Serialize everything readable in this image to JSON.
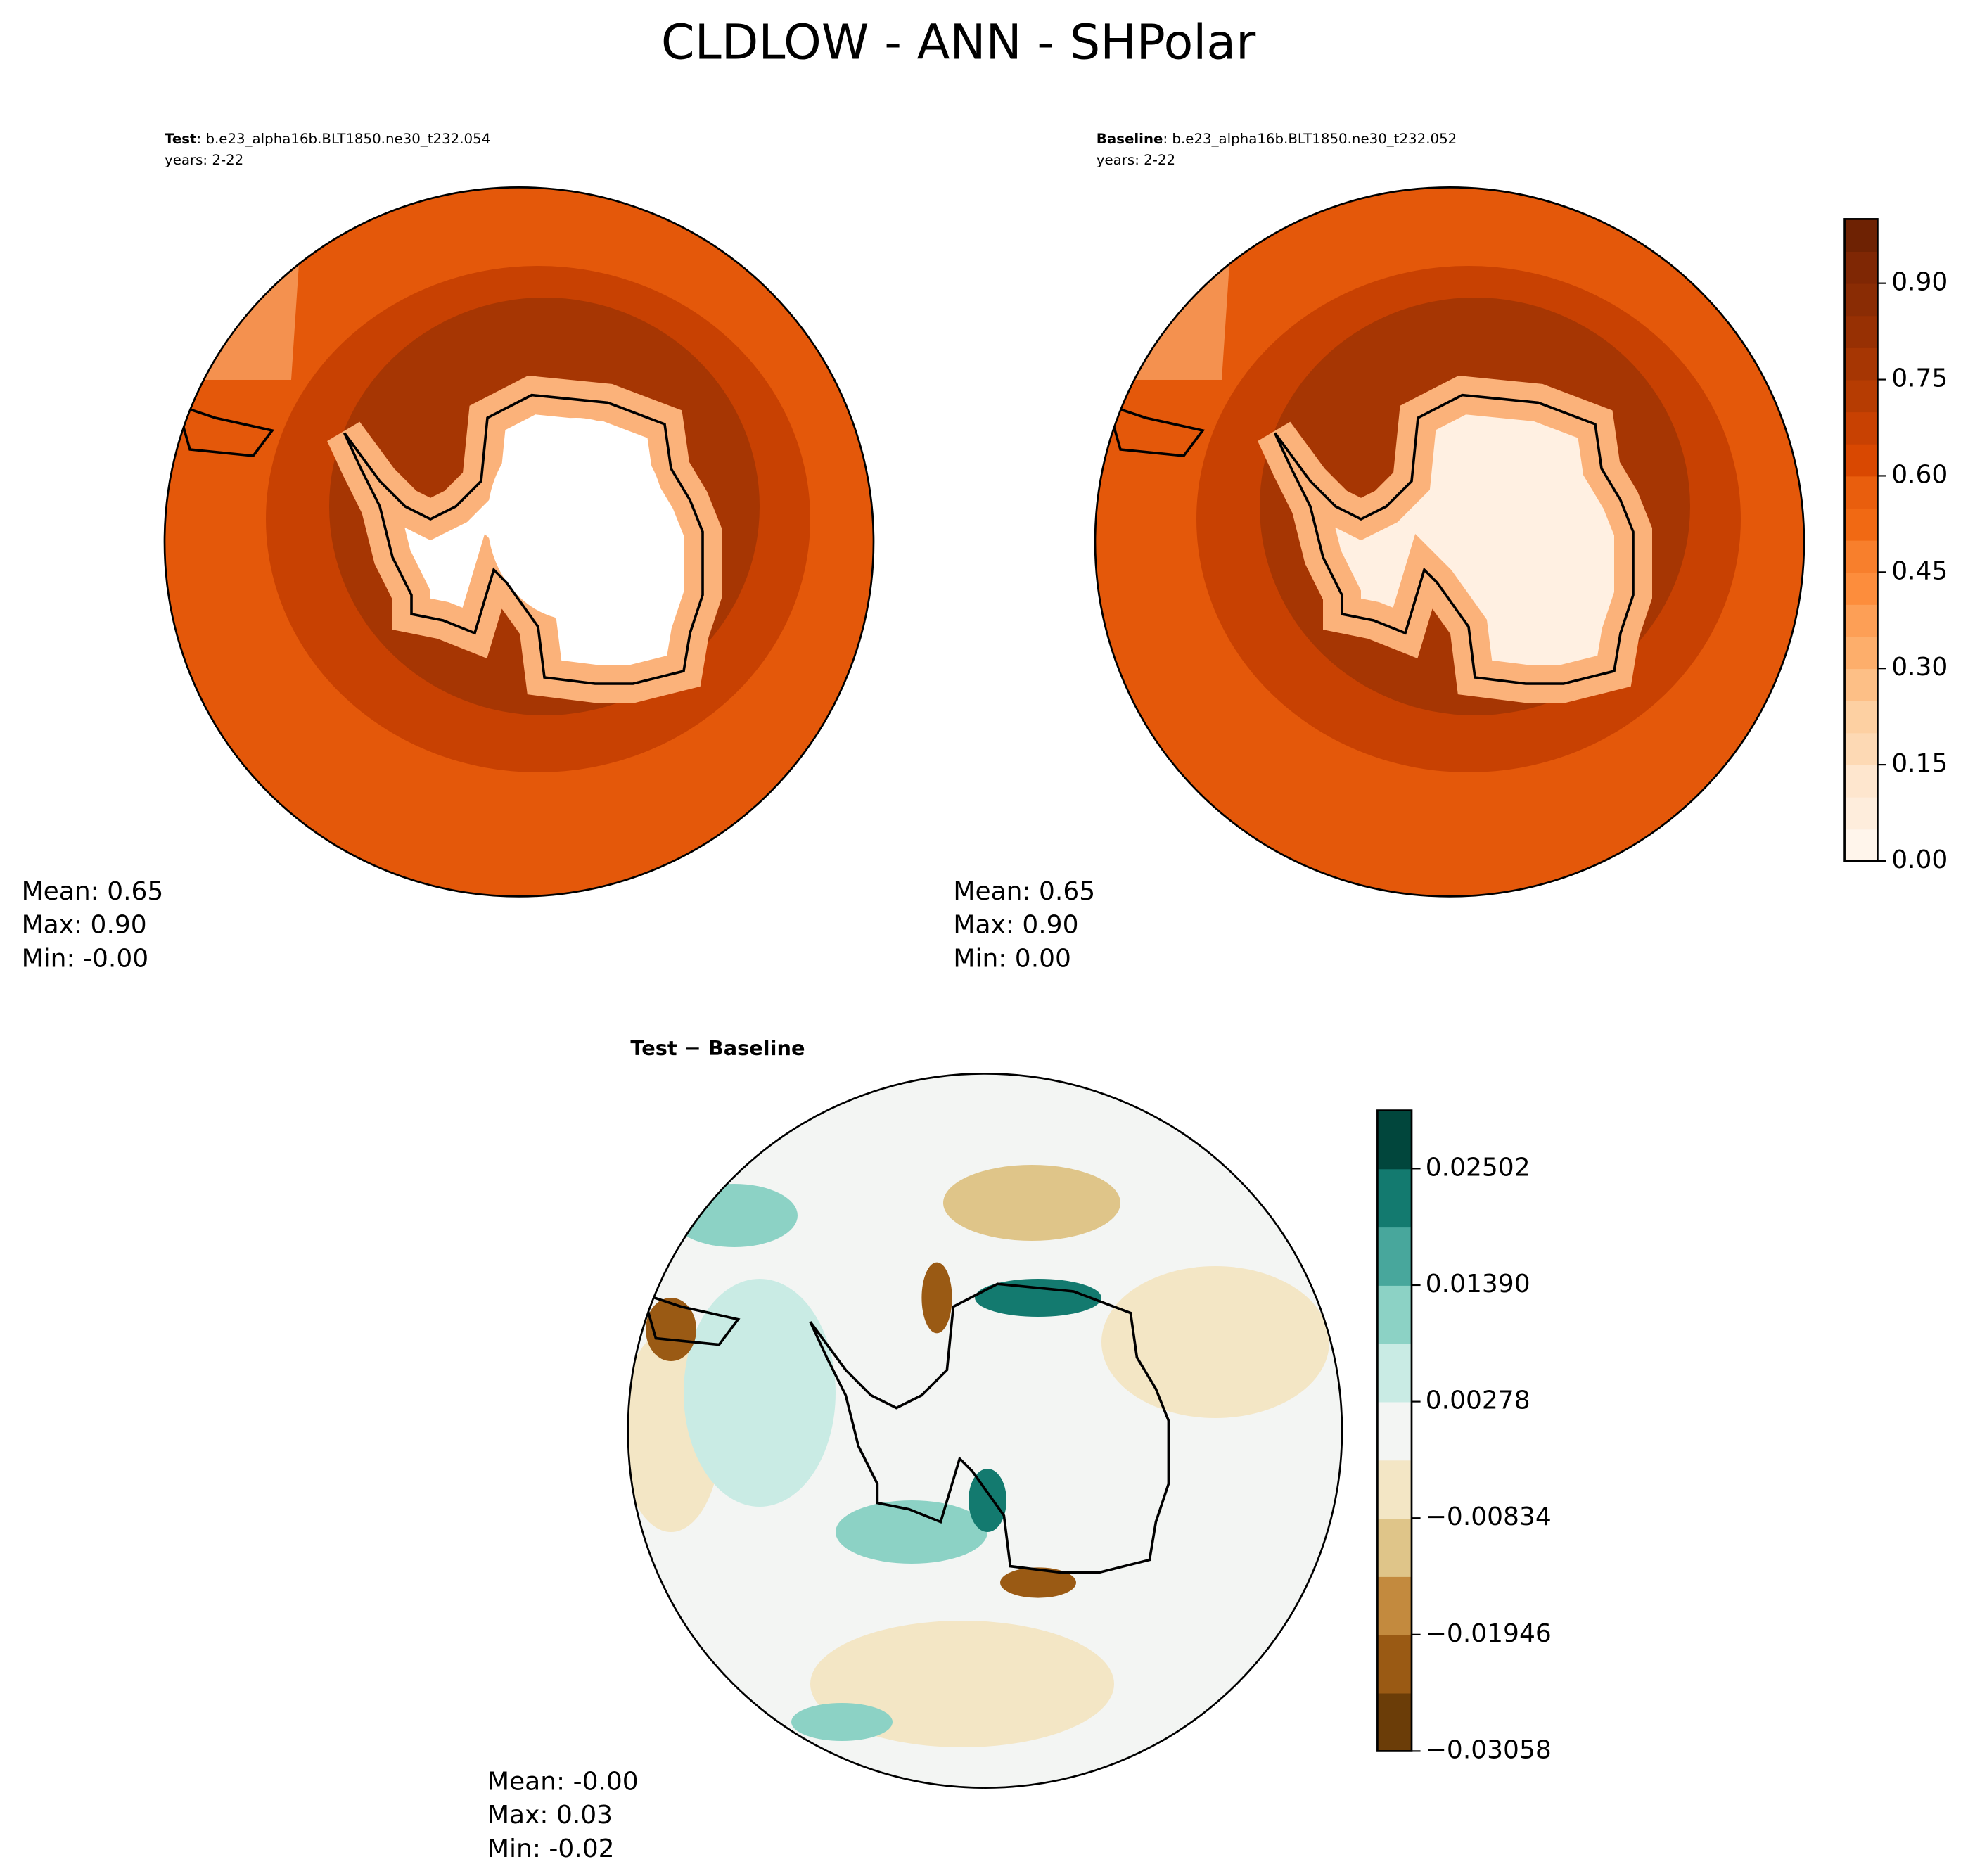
{
  "title": "CLDLOW - ANN - SHPolar",
  "panels": [
    {
      "label": "Test",
      "case": ": b.e23_alpha16b.BLT1850.ne30_t232.054",
      "years": "years: 2-22",
      "stats": [
        "Mean:  0.65",
        "Max:  0.90",
        "Min: -0.00"
      ]
    },
    {
      "label": "Baseline",
      "case": ": b.e23_alpha16b.BLT1850.ne30_t232.052",
      "years": "years: 2-22",
      "stats": [
        "Mean:  0.65",
        "Max:  0.90",
        "Min:  0.00"
      ]
    },
    {
      "label": "Test − Baseline",
      "stats": [
        "Mean: -0.00",
        "Max:  0.03",
        "Min: -0.02"
      ]
    }
  ],
  "colorbars": [
    {
      "lim": [
        0,
        1
      ],
      "ticks": [
        {
          "value": 0,
          "label": "0.00"
        },
        {
          "value": 0.15,
          "label": "0.15"
        },
        {
          "value": 0.3,
          "label": "0.30"
        },
        {
          "value": 0.45,
          "label": "0.45"
        },
        {
          "value": 0.6,
          "label": "0.60"
        },
        {
          "value": 0.75,
          "label": "0.75"
        },
        {
          "value": 0.9,
          "label": "0.90"
        }
      ],
      "colors": [
        "#fff5eb",
        "#feeddc",
        "#fee6ce",
        "#fdd9b4",
        "#fdd0a2",
        "#fdbf86",
        "#fdae6b",
        "#fd9f56",
        "#fd8d3c",
        "#f87f2c",
        "#f16913",
        "#e95e0d",
        "#d94801",
        "#c84102",
        "#b63c02",
        "#a63603",
        "#973003",
        "#8a2c04",
        "#7f2704",
        "#6e2203"
      ]
    },
    {
      "lim": [
        -0.03058,
        0.03058
      ],
      "ticks": [
        {
          "value": -0.03058,
          "label": "−0.03058"
        },
        {
          "value": -0.01946,
          "label": "−0.01946"
        },
        {
          "value": -0.00834,
          "label": "−0.00834"
        },
        {
          "value": 0.00278,
          "label": "0.00278"
        },
        {
          "value": 0.0139,
          "label": "0.01390"
        },
        {
          "value": 0.02502,
          "label": "0.02502"
        }
      ],
      "colors": [
        "#6b3d08",
        "#9a5a14",
        "#c38a3e",
        "#dfc589",
        "#f3e6c5",
        "#f3f5f3",
        "#c9ebe4",
        "#8cd2c5",
        "#48a79c",
        "#137a6f",
        "#01463c"
      ]
    }
  ]
}
